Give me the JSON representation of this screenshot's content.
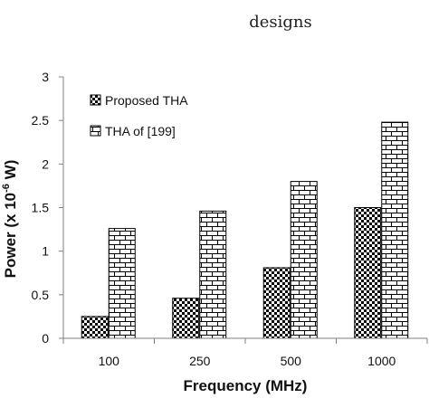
{
  "caption": "designs",
  "chart_data": {
    "type": "bar",
    "categories": [
      "100",
      "250",
      "500",
      "1000"
    ],
    "series": [
      {
        "name": "Proposed THA",
        "values": [
          0.25,
          0.46,
          0.81,
          1.5
        ],
        "pattern": "checker"
      },
      {
        "name": "THA of [199]",
        "values": [
          1.26,
          1.46,
          1.8,
          2.48
        ],
        "pattern": "brick"
      }
    ],
    "xlabel": "Frequency (MHz)",
    "ylabel_main": "Power (x 10",
    "ylabel_exp": "-6",
    "ylabel_unit": " W)",
    "ylim": [
      0,
      3
    ],
    "yticks": [
      "0",
      "0.5",
      "1",
      "1.5",
      "2",
      "2.5",
      "3"
    ],
    "legend_position": "top-left",
    "colors": {
      "axis": "#7f7f7f",
      "bar_stroke": "#000000",
      "fill": "#ffffff"
    }
  }
}
